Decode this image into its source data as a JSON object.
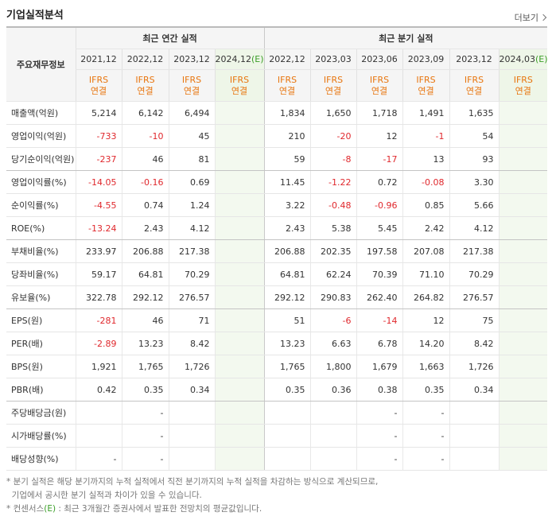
{
  "header": {
    "title": "기업실적분석",
    "more": "더보기"
  },
  "table": {
    "corner": "주요재무정보",
    "groups": [
      "최근 연간 실적",
      "최근 분기 실적"
    ],
    "columns": [
      {
        "period": "2021,12",
        "basis": [
          "IFRS",
          "연결"
        ]
      },
      {
        "period": "2022,12",
        "basis": [
          "IFRS",
          "연결"
        ]
      },
      {
        "period": "2023,12",
        "basis": [
          "IFRS",
          "연결"
        ]
      },
      {
        "period": "2024,12",
        "estimate": "(E)",
        "basis": [
          "IFRS",
          "연결"
        ]
      },
      {
        "period": "2022,12",
        "basis": [
          "IFRS",
          "연결"
        ]
      },
      {
        "period": "2023,03",
        "basis": [
          "IFRS",
          "연결"
        ]
      },
      {
        "period": "2023,06",
        "basis": [
          "IFRS",
          "연결"
        ]
      },
      {
        "period": "2023,09",
        "basis": [
          "IFRS",
          "연결"
        ]
      },
      {
        "period": "2023,12",
        "basis": [
          "IFRS",
          "연결"
        ]
      },
      {
        "period": "2024,03",
        "estimate": "(E)",
        "basis": [
          "IFRS",
          "연결"
        ]
      }
    ],
    "rows": [
      {
        "label": "매출액(억원)",
        "values": [
          "5,214",
          "6,142",
          "6,494",
          null,
          "1,834",
          "1,650",
          "1,718",
          "1,491",
          "1,635",
          null
        ]
      },
      {
        "label": "영업이익(억원)",
        "values": [
          "-733",
          "-10",
          "45",
          null,
          "210",
          "-20",
          "12",
          "-1",
          "54",
          null
        ]
      },
      {
        "label": "당기순이익(억원)",
        "values": [
          "-237",
          "46",
          "81",
          null,
          "59",
          "-8",
          "-17",
          "13",
          "93",
          null
        ]
      },
      {
        "label": "영업이익률(%)",
        "values": [
          "-14.05",
          "-0.16",
          "0.69",
          null,
          "11.45",
          "-1.22",
          "0.72",
          "-0.08",
          "3.30",
          null
        ]
      },
      {
        "label": "순이익률(%)",
        "values": [
          "-4.55",
          "0.74",
          "1.24",
          null,
          "3.22",
          "-0.48",
          "-0.96",
          "0.85",
          "5.66",
          null
        ]
      },
      {
        "label": "ROE(%)",
        "values": [
          "-13.24",
          "2.43",
          "4.12",
          null,
          "2.43",
          "5.38",
          "5.45",
          "2.42",
          "4.12",
          null
        ]
      },
      {
        "label": "부채비율(%)",
        "values": [
          "233.97",
          "206.88",
          "217.38",
          null,
          "206.88",
          "202.35",
          "197.58",
          "207.08",
          "217.38",
          null
        ]
      },
      {
        "label": "당좌비율(%)",
        "values": [
          "59.17",
          "64.81",
          "70.29",
          null,
          "64.81",
          "62.24",
          "70.39",
          "71.10",
          "70.29",
          null
        ]
      },
      {
        "label": "유보율(%)",
        "values": [
          "322.78",
          "292.12",
          "276.57",
          null,
          "292.12",
          "290.83",
          "262.40",
          "264.82",
          "276.57",
          null
        ]
      },
      {
        "label": "EPS(원)",
        "values": [
          "-281",
          "46",
          "71",
          null,
          "51",
          "-6",
          "-14",
          "12",
          "75",
          null
        ]
      },
      {
        "label": "PER(배)",
        "values": [
          "-2.89",
          "13.23",
          "8.42",
          null,
          "13.23",
          "6.63",
          "6.78",
          "14.20",
          "8.42",
          null
        ]
      },
      {
        "label": "BPS(원)",
        "values": [
          "1,921",
          "1,765",
          "1,726",
          null,
          "1,765",
          "1,800",
          "1,679",
          "1,663",
          "1,726",
          null
        ]
      },
      {
        "label": "PBR(배)",
        "values": [
          "0.42",
          "0.35",
          "0.34",
          null,
          "0.35",
          "0.36",
          "0.38",
          "0.35",
          "0.34",
          null
        ]
      },
      {
        "label": "주당배당금(원)",
        "values": [
          null,
          "-",
          null,
          null,
          null,
          null,
          "-",
          "-",
          null,
          null
        ]
      },
      {
        "label": "시가배당률(%)",
        "values": [
          null,
          "-",
          null,
          null,
          null,
          null,
          "-",
          "-",
          null,
          null
        ]
      },
      {
        "label": "배당성향(%)",
        "values": [
          "-",
          "-",
          null,
          null,
          null,
          null,
          "-",
          "-",
          null,
          null
        ]
      }
    ]
  },
  "notes": {
    "lines": [
      "* 분기 실적은 해당 분기까지의 누적 실적에서 직전 분기까지의 누적 실적을 차감하는 방식으로 계산되므로,",
      "  기업에서 공시한 분기 실적과 차이가 있을 수 있습니다."
    ],
    "consensus": {
      "prefix": "* 컨센서스",
      "mark": "(E)",
      "text": " : 최근 3개월간 증권사에서 발표한 전망치의 평균값입니다."
    }
  }
}
